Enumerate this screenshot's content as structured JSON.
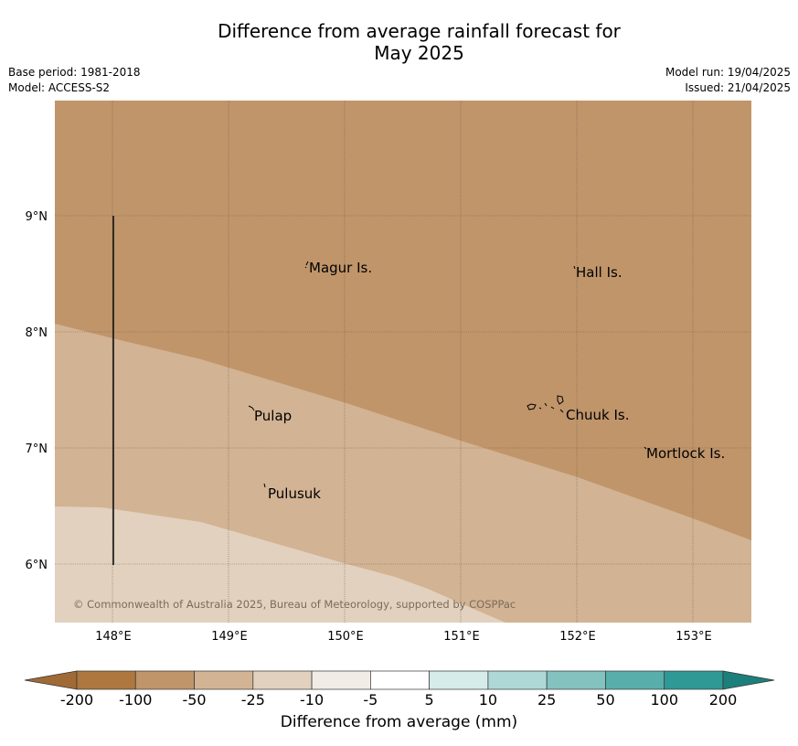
{
  "header": {
    "title_line1": "Difference from average rainfall forecast for",
    "title_line2": "May 2025",
    "base_period": "Base period: 1981-2018",
    "model": "Model: ACCESS-S2",
    "model_run": "Model run: 19/04/2025",
    "issued": "Issued: 21/04/2025"
  },
  "map": {
    "lat_labels": [
      "9°N",
      "8°N",
      "7°N",
      "6°N"
    ],
    "lon_labels": [
      "148°E",
      "149°E",
      "150°E",
      "151°E",
      "152°E",
      "153°E"
    ],
    "places": [
      "Magur Is.",
      "Hall Is.",
      "Pulap",
      "Chuuk Is.",
      "Mortlock Is.",
      "Pulusuk"
    ],
    "copyright": "© Commonwealth of Australia 2025, Bureau of Meteorology, supported by COSPPac",
    "region_colors": {
      "-50_to_-100": "#c0956a",
      "-25_to_-50": "#d2b394",
      "-10_to_-25": "#e2d1bf"
    }
  },
  "colorbar": {
    "ticks": [
      "-200",
      "-100",
      "-50",
      "-25",
      "-10",
      "-5",
      "5",
      "10",
      "25",
      "50",
      "100",
      "200"
    ],
    "colors": [
      "#a06a36",
      "#ad773f",
      "#c0956a",
      "#d2b394",
      "#e2d1bf",
      "#f1ece6",
      "#ffffff",
      "#d6ecea",
      "#add8d5",
      "#83c2be",
      "#58aeab",
      "#2f9995",
      "#1d7f7b"
    ],
    "label": "Difference from average (mm)"
  }
}
